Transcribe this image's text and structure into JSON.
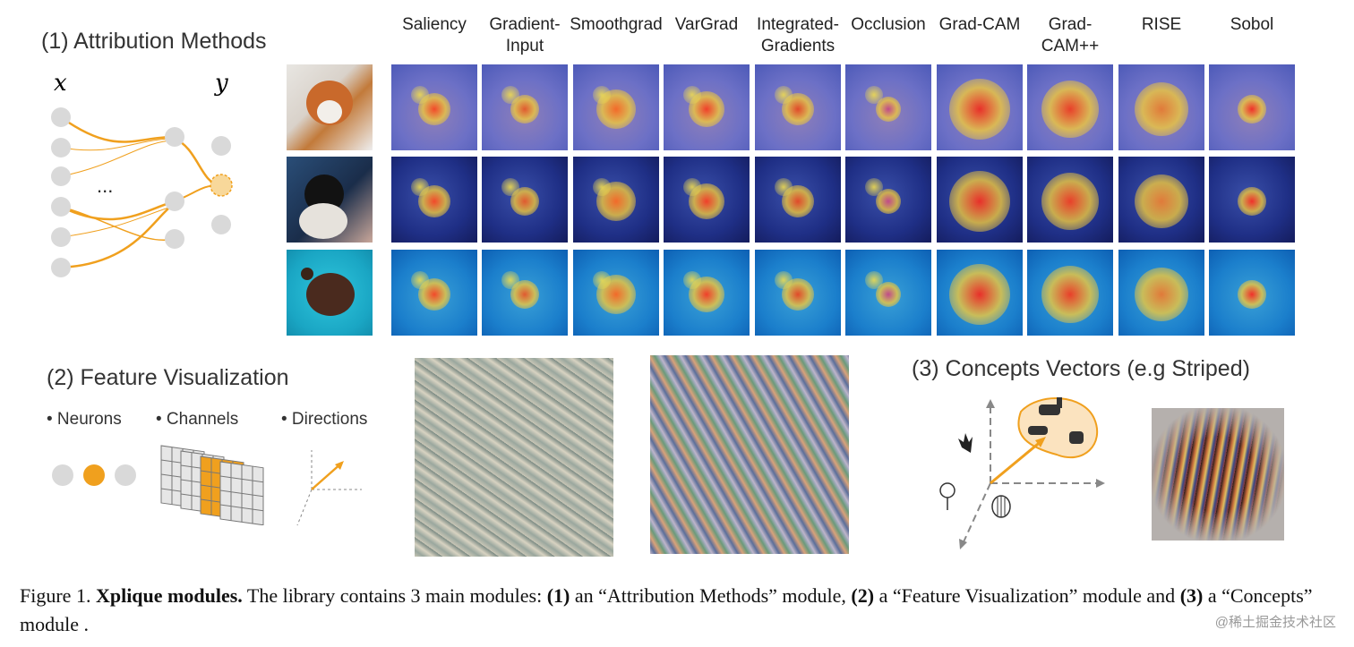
{
  "section1": {
    "title": "(1) Attribution Methods",
    "x_symbol": "x",
    "y_symbol": "y",
    "ellipsis": "..."
  },
  "methods": [
    "Saliency",
    "Gradient-\nInput",
    "Smoothgrad",
    "VarGrad",
    "Integrated-\nGradients",
    "Occlusion",
    "Grad-CAM",
    "Grad-\nCAM++",
    "RISE",
    "Sobol"
  ],
  "rows": [
    {
      "subject": "fox",
      "base": "#c8b9a9",
      "accent": "#b5602a"
    },
    {
      "subject": "cat",
      "base": "#1d3558",
      "accent": "#e0ddd6"
    },
    {
      "subject": "turtle",
      "base": "#1fb4cc",
      "accent": "#4a2a1e"
    }
  ],
  "section2": {
    "title": "(2) Feature Visualization",
    "bullets": [
      "• Neurons",
      "• Channels",
      "• Directions"
    ]
  },
  "section3": {
    "title": "(3) Concepts Vectors (e.g Striped)"
  },
  "caption": {
    "prefix": "Figure 1. ",
    "bold1": "Xplique modules.",
    "t1": " The library contains 3 main modules: ",
    "b_1": "(1)",
    "t2": " an “Attribution Methods” module, ",
    "b_2": "(2)",
    "t3": " a “Feature Visualization” module and ",
    "b_3": "(3)",
    "t4": " a “Concepts” module ."
  },
  "watermark": "@稀土掘金技术社区",
  "colors": {
    "orange": "#f0a01e",
    "grey_node": "#d9d9d9"
  }
}
